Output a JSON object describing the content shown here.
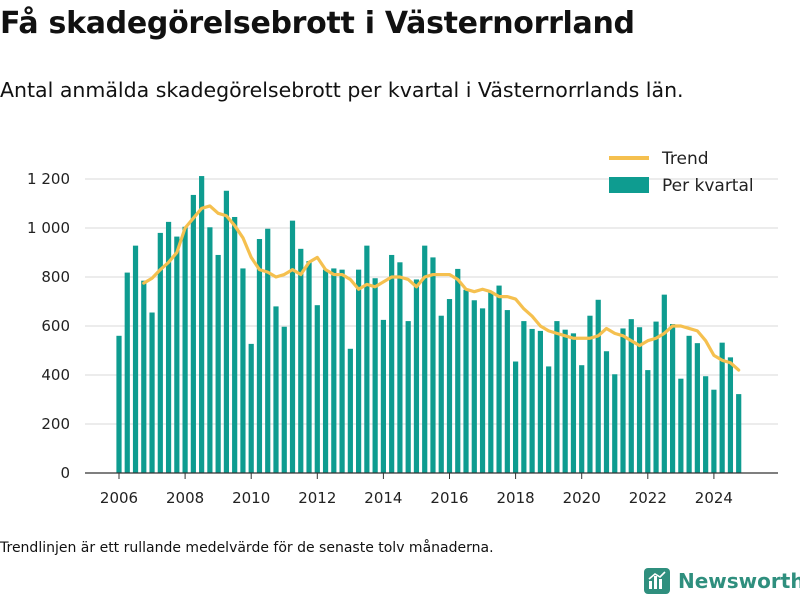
{
  "title": "Få skadegörelsebrott i Västernorrland",
  "subtitle": "Antal anmälda skadegörelsebrott per kvartal i Västernorrlands län.",
  "footnote": "Trendlinjen är ett rullande medelvärde för de senaste tolv månaderna.",
  "brand": {
    "name": "Newsworthy"
  },
  "colors": {
    "bar": "#0e9c90",
    "trend": "#f5c04f",
    "grid": "#d9d9d9",
    "brand": "#2f8f7e"
  },
  "chart_data": {
    "type": "bar",
    "grid": true,
    "legend_position": "top-right",
    "ylim": [
      0,
      1300
    ],
    "yticks": [
      0,
      200,
      400,
      600,
      800,
      1000,
      1200
    ],
    "ytick_labels": [
      "0",
      "200",
      "400",
      "600",
      "800",
      "1 000",
      "1 200"
    ],
    "xlim": [
      2005.5,
      2025.5
    ],
    "xticks": [
      2006,
      2008,
      2010,
      2012,
      2014,
      2016,
      2018,
      2020,
      2022,
      2024
    ],
    "xtick_labels": [
      "2006",
      "2008",
      "2010",
      "2012",
      "2014",
      "2016",
      "2018",
      "2020",
      "2022",
      "2024"
    ],
    "series": [
      {
        "name": "Per kvartal",
        "kind": "bar",
        "x": [
          2006.0,
          2006.25,
          2006.5,
          2006.75,
          2007.0,
          2007.25,
          2007.5,
          2007.75,
          2008.0,
          2008.25,
          2008.5,
          2008.75,
          2009.0,
          2009.25,
          2009.5,
          2009.75,
          2010.0,
          2010.25,
          2010.5,
          2010.75,
          2011.0,
          2011.25,
          2011.5,
          2011.75,
          2012.0,
          2012.25,
          2012.5,
          2012.75,
          2013.0,
          2013.25,
          2013.5,
          2013.75,
          2014.0,
          2014.25,
          2014.5,
          2014.75,
          2015.0,
          2015.25,
          2015.5,
          2015.75,
          2016.0,
          2016.25,
          2016.5,
          2016.75,
          2017.0,
          2017.25,
          2017.5,
          2017.75,
          2018.0,
          2018.25,
          2018.5,
          2018.75,
          2019.0,
          2019.25,
          2019.5,
          2019.75,
          2020.0,
          2020.25,
          2020.5,
          2020.75,
          2021.0,
          2021.25,
          2021.5,
          2021.75,
          2022.0,
          2022.25,
          2022.5,
          2022.75,
          2023.0,
          2023.25,
          2023.5,
          2023.75,
          2024.0,
          2024.25,
          2024.5,
          2024.75
        ],
        "values": [
          560,
          818,
          928,
          785,
          655,
          980,
          1025,
          965,
          1005,
          1135,
          1212,
          1003,
          890,
          1152,
          1045,
          835,
          527,
          955,
          997,
          680,
          597,
          1030,
          915,
          865,
          685,
          830,
          835,
          830,
          507,
          830,
          928,
          795,
          625,
          890,
          860,
          620,
          790,
          928,
          880,
          642,
          710,
          833,
          748,
          705,
          672,
          738,
          765,
          665,
          455,
          620,
          588,
          580,
          435,
          620,
          585,
          570,
          440,
          642,
          707,
          497,
          403,
          590,
          628,
          595,
          420,
          618,
          728,
          608,
          385,
          560,
          530,
          395,
          340,
          532,
          472,
          322
        ]
      },
      {
        "name": "Trend",
        "kind": "line",
        "x": [
          2006.75,
          2007.0,
          2007.25,
          2007.5,
          2007.75,
          2008.0,
          2008.25,
          2008.5,
          2008.75,
          2009.0,
          2009.25,
          2009.5,
          2009.75,
          2010.0,
          2010.25,
          2010.5,
          2010.75,
          2011.0,
          2011.25,
          2011.5,
          2011.75,
          2012.0,
          2012.25,
          2012.5,
          2012.75,
          2013.0,
          2013.25,
          2013.5,
          2013.75,
          2014.0,
          2014.25,
          2014.5,
          2014.75,
          2015.0,
          2015.25,
          2015.5,
          2015.75,
          2016.0,
          2016.25,
          2016.5,
          2016.75,
          2017.0,
          2017.25,
          2017.5,
          2017.75,
          2018.0,
          2018.25,
          2018.5,
          2018.75,
          2019.0,
          2019.25,
          2019.5,
          2019.75,
          2020.0,
          2020.25,
          2020.5,
          2020.75,
          2021.0,
          2021.25,
          2021.5,
          2021.75,
          2022.0,
          2022.25,
          2022.5,
          2022.75,
          2023.0,
          2023.25,
          2023.5,
          2023.75,
          2024.0,
          2024.25,
          2024.5,
          2024.75
        ],
        "values": [
          775,
          795,
          830,
          860,
          900,
          1000,
          1040,
          1080,
          1090,
          1060,
          1050,
          1010,
          960,
          880,
          830,
          820,
          800,
          810,
          830,
          810,
          860,
          880,
          830,
          810,
          810,
          790,
          750,
          770,
          760,
          780,
          800,
          800,
          790,
          760,
          800,
          810,
          810,
          810,
          790,
          750,
          740,
          750,
          740,
          720,
          720,
          710,
          670,
          640,
          600,
          580,
          570,
          560,
          550,
          550,
          550,
          560,
          590,
          570,
          560,
          540,
          520,
          540,
          550,
          570,
          600,
          600,
          590,
          580,
          540,
          480,
          460,
          450,
          420
        ]
      }
    ]
  }
}
